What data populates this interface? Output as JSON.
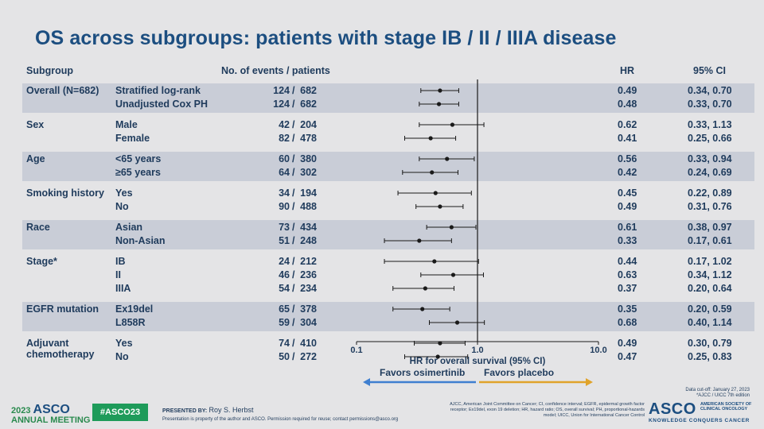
{
  "title": "OS across subgroups: patients with stage IB / II / IIIA disease",
  "headers": {
    "subgroup": "Subgroup",
    "events": "No. of events /  patients",
    "hr": "HR",
    "ci": "95% CI"
  },
  "chart_data": {
    "type": "forest",
    "x_scale": "log",
    "xlim": [
      0.1,
      10.0
    ],
    "x_ticks": [
      "0.1",
      "1.0",
      "10.0"
    ],
    "reference_line": 1.0,
    "xlabel": "HR for overall survival (95% CI)",
    "favors_left": "Favors osimertinib",
    "favors_right": "Favors placebo",
    "colors": {
      "left_arrow": "#3f7fd0",
      "right_arrow": "#e0a32a",
      "band": "#c9cdd7",
      "text": "#1f3b5c"
    },
    "groups": [
      {
        "name": "Overall (N=682)",
        "rows": [
          {
            "label": "Stratified log-rank",
            "events": "124",
            "patients": "682",
            "hr": 0.49,
            "lo": 0.34,
            "hi": 0.7,
            "hr_text": "0.49",
            "ci_text": "0.34, 0.70"
          },
          {
            "label": "Unadjusted Cox PH",
            "events": "124",
            "patients": "682",
            "hr": 0.48,
            "lo": 0.33,
            "hi": 0.7,
            "hr_text": "0.48",
            "ci_text": "0.33, 0.70"
          }
        ]
      },
      {
        "name": "Sex",
        "rows": [
          {
            "label": "Male",
            "events": "42",
            "patients": "204",
            "hr": 0.62,
            "lo": 0.33,
            "hi": 1.13,
            "hr_text": "0.62",
            "ci_text": "0.33, 1.13"
          },
          {
            "label": "Female",
            "events": "82",
            "patients": "478",
            "hr": 0.41,
            "lo": 0.25,
            "hi": 0.66,
            "hr_text": "0.41",
            "ci_text": "0.25, 0.66"
          }
        ]
      },
      {
        "name": "Age",
        "rows": [
          {
            "label": "<65 years",
            "events": "60",
            "patients": "380",
            "hr": 0.56,
            "lo": 0.33,
            "hi": 0.94,
            "hr_text": "0.56",
            "ci_text": "0.33, 0.94"
          },
          {
            "label": "≥65 years",
            "events": "64",
            "patients": "302",
            "hr": 0.42,
            "lo": 0.24,
            "hi": 0.69,
            "hr_text": "0.42",
            "ci_text": "0.24, 0.69"
          }
        ]
      },
      {
        "name": "Smoking history",
        "rows": [
          {
            "label": "Yes",
            "events": "34",
            "patients": "194",
            "hr": 0.45,
            "lo": 0.22,
            "hi": 0.89,
            "hr_text": "0.45",
            "ci_text": "0.22, 0.89"
          },
          {
            "label": "No",
            "events": "90",
            "patients": "488",
            "hr": 0.49,
            "lo": 0.31,
            "hi": 0.76,
            "hr_text": "0.49",
            "ci_text": "0.31, 0.76"
          }
        ]
      },
      {
        "name": "Race",
        "rows": [
          {
            "label": "Asian",
            "events": "73",
            "patients": "434",
            "hr": 0.61,
            "lo": 0.38,
            "hi": 0.97,
            "hr_text": "0.61",
            "ci_text": "0.38, 0.97"
          },
          {
            "label": "Non-Asian",
            "events": "51",
            "patients": "248",
            "hr": 0.33,
            "lo": 0.17,
            "hi": 0.61,
            "hr_text": "0.33",
            "ci_text": "0.17, 0.61"
          }
        ]
      },
      {
        "name": "Stage*",
        "rows": [
          {
            "label": "IB",
            "events": "24",
            "patients": "212",
            "hr": 0.44,
            "lo": 0.17,
            "hi": 1.02,
            "hr_text": "0.44",
            "ci_text": "0.17, 1.02"
          },
          {
            "label": "II",
            "events": "46",
            "patients": "236",
            "hr": 0.63,
            "lo": 0.34,
            "hi": 1.12,
            "hr_text": "0.63",
            "ci_text": "0.34, 1.12"
          },
          {
            "label": "IIIA",
            "events": "54",
            "patients": "234",
            "hr": 0.37,
            "lo": 0.2,
            "hi": 0.64,
            "hr_text": "0.37",
            "ci_text": "0.20, 0.64"
          }
        ]
      },
      {
        "name": "EGFR mutation",
        "rows": [
          {
            "label": "Ex19del",
            "events": "65",
            "patients": "378",
            "hr": 0.35,
            "lo": 0.2,
            "hi": 0.59,
            "hr_text": "0.35",
            "ci_text": "0.20, 0.59"
          },
          {
            "label": "L858R",
            "events": "59",
            "patients": "304",
            "hr": 0.68,
            "lo": 0.4,
            "hi": 1.14,
            "hr_text": "0.68",
            "ci_text": "0.40, 1.14"
          }
        ]
      },
      {
        "name": "Adjuvant chemotherapy",
        "rows": [
          {
            "label": "Yes",
            "events": "74",
            "patients": "410",
            "hr": 0.49,
            "lo": 0.3,
            "hi": 0.79,
            "hr_text": "0.49",
            "ci_text": "0.30, 0.79"
          },
          {
            "label": "No",
            "events": "50",
            "patients": "272",
            "hr": 0.47,
            "lo": 0.25,
            "hi": 0.83,
            "hr_text": "0.47",
            "ci_text": "0.25, 0.83"
          }
        ]
      }
    ]
  },
  "footer": {
    "year_asco": "2023",
    "asco": "ASCO",
    "annual_meeting": "ANNUAL MEETING",
    "hashtag": "#ASCO23",
    "presented_by": "PRESENTED BY:",
    "presenter": "Roy S. Herbst",
    "presented_note": "Presentation is property of the author and ASCO. Permission required for reuse; contact permissions@asco.org",
    "abbreviations": "AJCC, American Joint Committee on Cancer; CI, confidence interval; EGFR, epidermal growth factor receptor; Ex19del, exon 19 deletion; HR, hazard ratio; OS, overall survival; PH, proportional-hazards model; UICC, Union for International Cancer Control",
    "cutoff": "Data cut-off: January 27, 2023",
    "cutoff_note": "*AJCC / UICC 7th edition",
    "asco_right": "ASCO",
    "asco_right_sub1": "AMERICAN SOCIETY OF",
    "asco_right_sub2": "CLINICAL ONCOLOGY",
    "asco_right_tag": "KNOWLEDGE CONQUERS CANCER"
  }
}
